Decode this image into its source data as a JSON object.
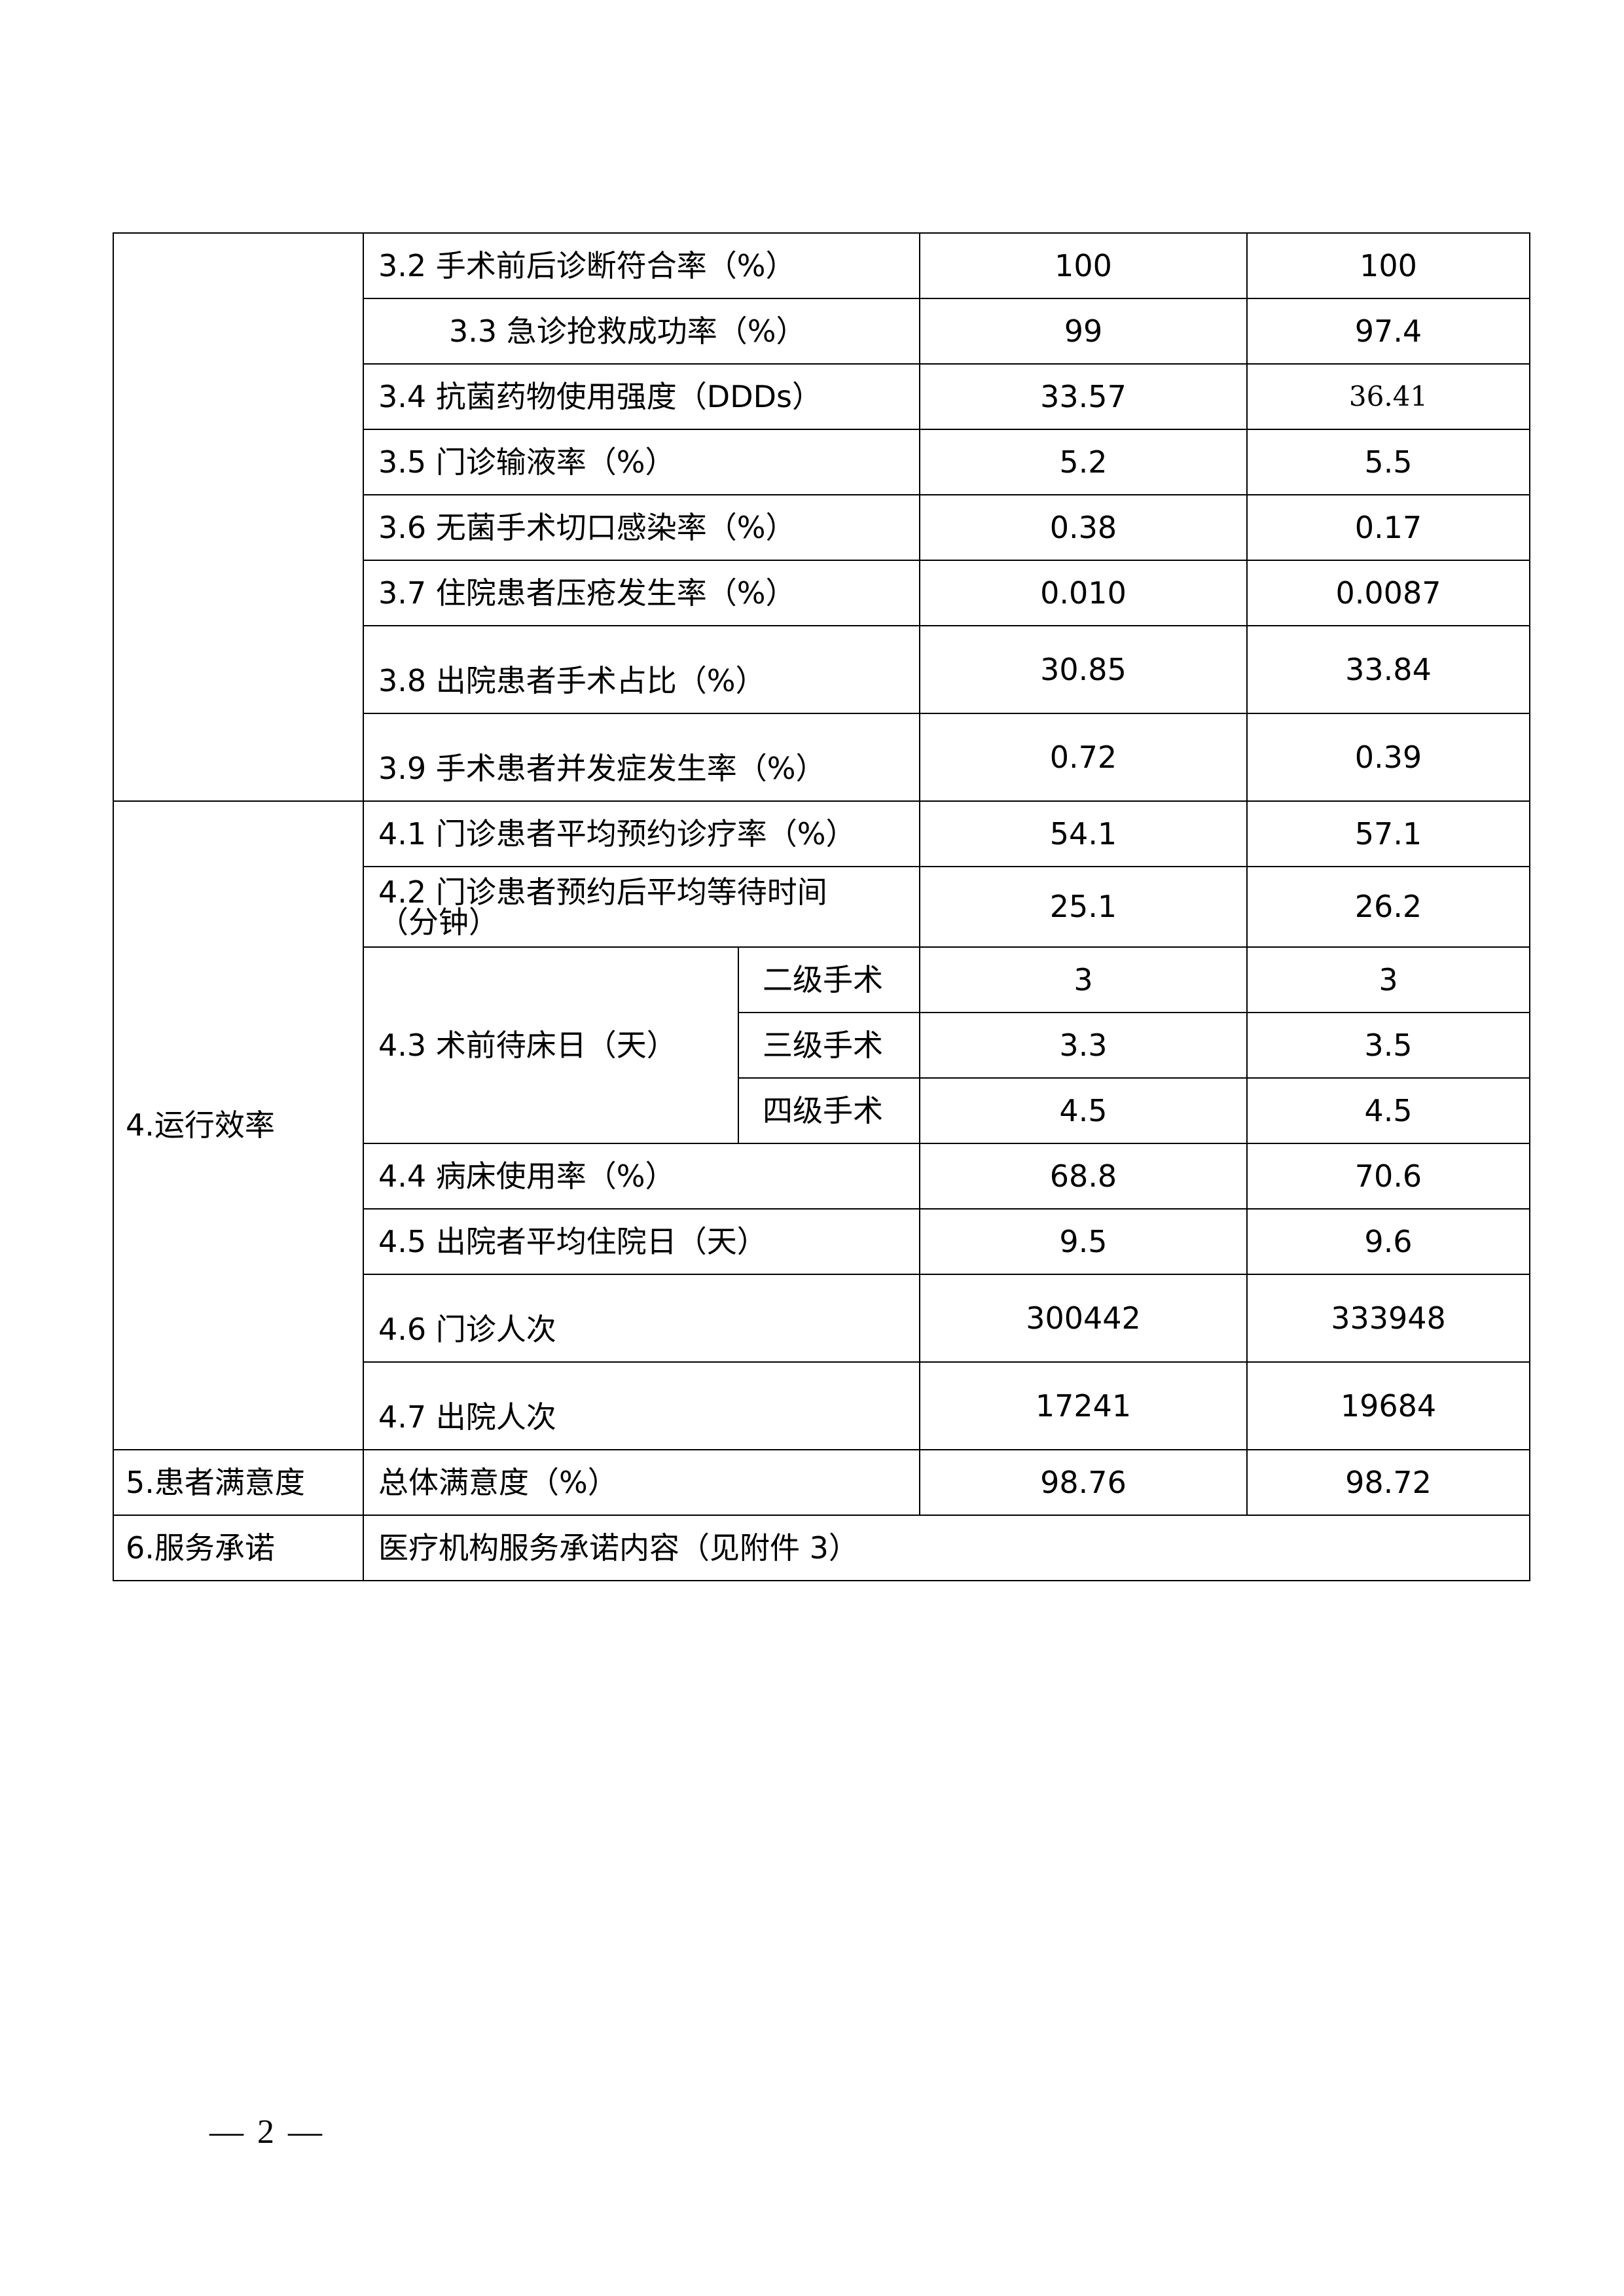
{
  "table": {
    "rows": [
      {
        "label": "3.2  手术前后诊断符合率（%）",
        "v1": "100",
        "v2": "100"
      },
      {
        "label": "3.3  急诊抢救成功率（%）",
        "v1": "99",
        "v2": "97.4"
      },
      {
        "label": "3.4  抗菌药物使用强度（DDDs）",
        "v1": "33.57",
        "v2": "36.41"
      },
      {
        "label": "3.5  门诊输液率（%）",
        "v1": "5.2",
        "v2": "5.5"
      },
      {
        "label": "3.6  无菌手术切口感染率（%）",
        "v1": "0.38",
        "v2": "0.17"
      },
      {
        "label": "3.7  住院患者压疮发生率（%）",
        "v1": "0.010",
        "v2": "0.0087"
      },
      {
        "label": "3.8  出院患者手术占比（%）",
        "v1": "30.85",
        "v2": "33.84"
      },
      {
        "label": "3.9  手术患者并发症发生率（%）",
        "v1": "0.72",
        "v2": "0.39"
      },
      {
        "label": "4.1  门诊患者平均预约诊疗率（%）",
        "v1": "54.1",
        "v2": "57.1"
      },
      {
        "label": "4.2  门诊患者预约后平均等待时间（分钟）",
        "v1": "25.1",
        "v2": "26.2"
      },
      {
        "label": "4.3  术前待床日（天）",
        "sub": "二级手术",
        "v1": "3",
        "v2": "3"
      },
      {
        "sub": "三级手术",
        "v1": "3.3",
        "v2": "3.5"
      },
      {
        "sub": "四级手术",
        "v1": "4.5",
        "v2": "4.5"
      },
      {
        "label": "4.4  病床使用率（%）",
        "v1": "68.8",
        "v2": "70.6"
      },
      {
        "label": "4.5  出院者平均住院日（天）",
        "v1": "9.5",
        "v2": "9.6"
      },
      {
        "label": "4.6  门诊人次",
        "v1": "300442",
        "v2": "333948"
      },
      {
        "label": "4.7  出院人次",
        "v1": "17241",
        "v2": "19684"
      },
      {
        "label": "总体满意度（%）",
        "v1": "98.76",
        "v2": "98.72"
      },
      {
        "label": "医疗机构服务承诺内容（见附件 3）"
      }
    ],
    "categories": {
      "efficiency": "4.运行效率",
      "satisfaction": "5.患者满意度",
      "commitment": "6.服务承诺"
    }
  },
  "footer": {
    "page_number": "— 2 —"
  }
}
